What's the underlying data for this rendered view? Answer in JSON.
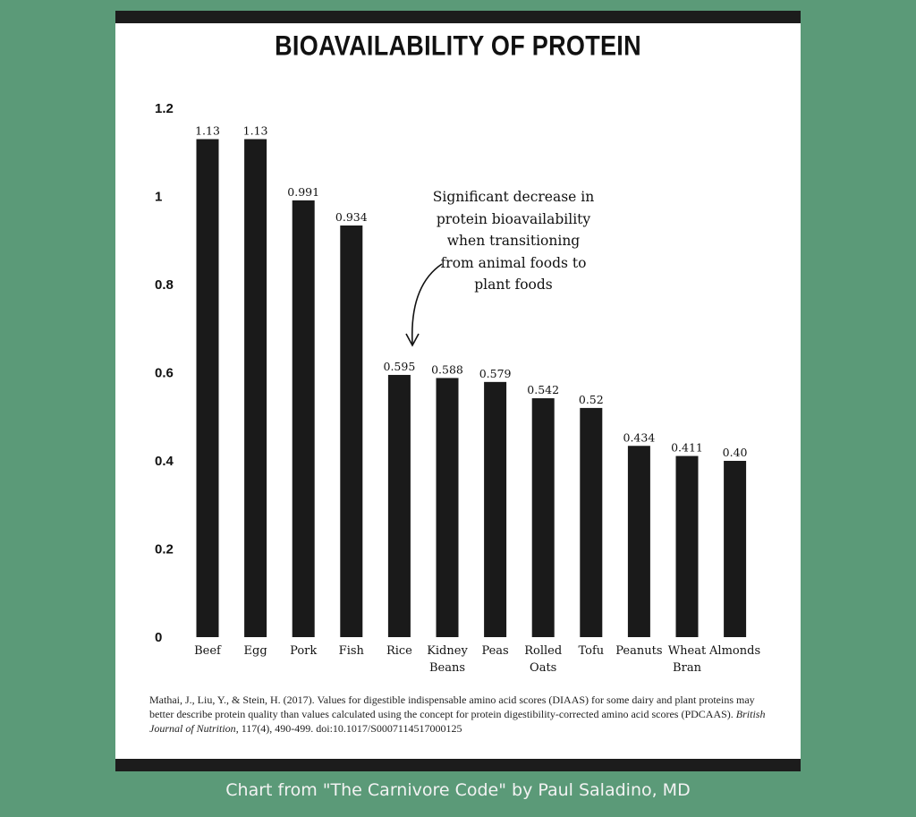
{
  "chart_data": {
    "type": "bar",
    "title": "BIOAVAILABILITY OF PROTEIN",
    "categories": [
      "Beef",
      "Egg",
      "Pork",
      "Fish",
      "Rice",
      "Kidney\nBeans",
      "Peas",
      "Rolled\nOats",
      "Tofu",
      "Peanuts",
      "Wheat\nBran",
      "Almonds"
    ],
    "values": [
      1.13,
      1.13,
      0.991,
      0.934,
      0.595,
      0.588,
      0.579,
      0.542,
      0.52,
      0.434,
      0.411,
      0.4
    ],
    "value_labels": [
      "1.13",
      "1.13",
      "0.991",
      "0.934",
      "0.595",
      "0.588",
      "0.579",
      "0.542",
      "0.52",
      "0.434",
      "0.411",
      "0.40"
    ],
    "ylim": [
      0,
      1.2
    ],
    "yticks": [
      "0",
      "0.2",
      "0.4",
      "0.6",
      "0.8",
      "1",
      "1.2"
    ],
    "grid": false,
    "bar_color": "#1a1a1a",
    "annotation": "Significant decrease in\nprotein bioavailability\nwhen transitioning\nfrom animal foods to\nplant foods"
  },
  "citation": {
    "text": "Mathai, J., Liu, Y., & Stein, H. (2017). Values for digestible indispensable amino acid scores (DIAAS) for some dairy and plant proteins may better describe protein quality than values calculated using the concept for protein digestibility-corrected amino acid scores (PDCAAS). ",
    "journal": "British Journal of Nutrition",
    "tail": ", 117(4), 490-499. doi:10.1017/S0007114517000125"
  },
  "caption": "Chart from \"The Carnivore Code\" by Paul Saladino, MD",
  "colors": {
    "background": "#5b9a78",
    "card": "#ffffff",
    "frame": "#1c1c1c"
  }
}
